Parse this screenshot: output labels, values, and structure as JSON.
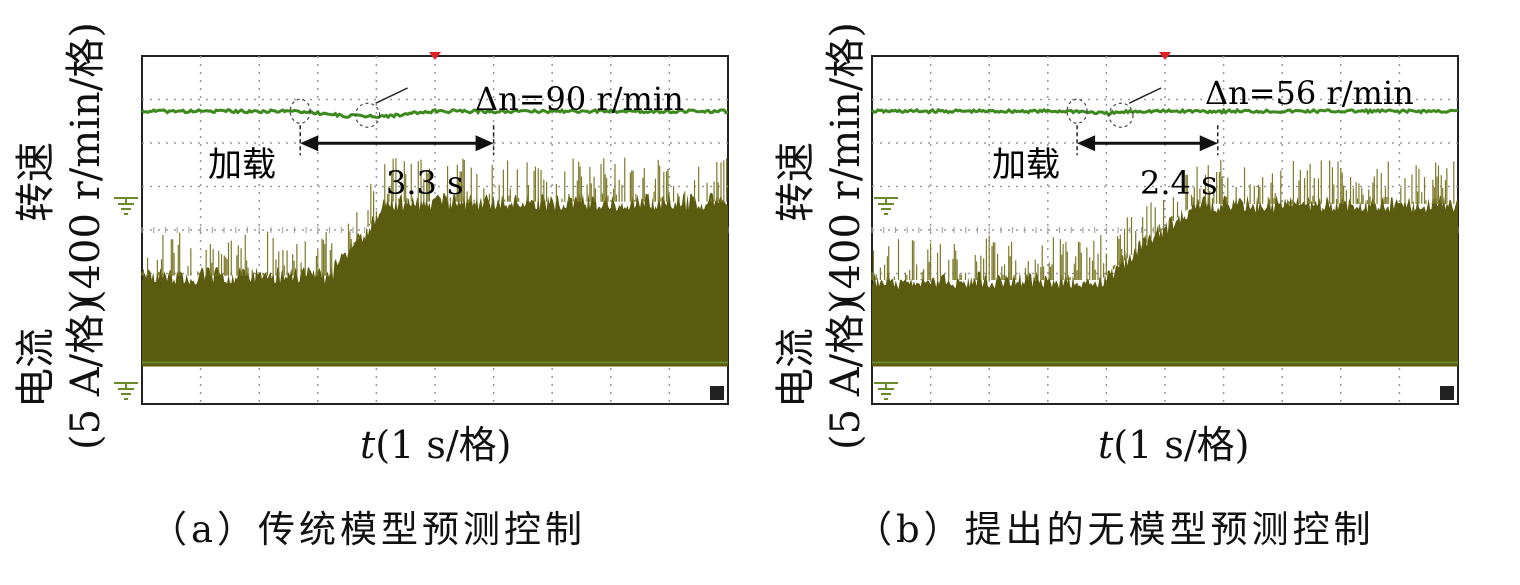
{
  "panels": [
    {
      "caption": "（a）传统模型预测控制",
      "y_speed_label": "转速",
      "y_speed_unit": "(400 r/min/格)",
      "y_current_label": "电流",
      "y_current_unit": "(5 A/格)",
      "x_label_var": "t",
      "x_label_unit": "(1 s/格)",
      "delta_n_text": "=90 r/min",
      "delta_symbol": "Δn",
      "load_text": "加载",
      "interval_text": "3.3 s"
    },
    {
      "caption": "（b）提出的无模型预测控制",
      "y_speed_label": "转速",
      "y_speed_unit": "(400 r/min/格)",
      "y_current_label": "电流",
      "y_current_unit": "(5 A/格)",
      "x_label_var": "t",
      "x_label_unit": "(1 s/格)",
      "delta_n_text": "=56 r/min",
      "delta_symbol": "Δn",
      "load_text": "加载",
      "interval_text": "2.4 s"
    }
  ],
  "chart_data": [
    {
      "type": "line",
      "x_divisions": 10,
      "y_divisions": 8,
      "grid": true,
      "series": [
        {
          "name": "转速",
          "color": "#3c8a1e",
          "x": [
            0,
            2.7,
            3.5,
            4.2,
            5.0,
            10
          ],
          "y": [
            0,
            0,
            -0.2,
            -0.2,
            0,
            0
          ]
        },
        {
          "name": "电流",
          "color": "#5b5b10",
          "x": [
            0,
            3.2,
            4.2,
            10
          ],
          "y": [
            1.95,
            1.95,
            3.65,
            3.65
          ]
        }
      ],
      "load_time": 2.7,
      "recovery_time": 6.0,
      "delta_n": 90,
      "settling_s": 3.3,
      "speed_line_color": "#3c8a1e",
      "current_fill_color": "#5b5b10"
    },
    {
      "type": "line",
      "x_divisions": 10,
      "y_divisions": 8,
      "grid": true,
      "series": [
        {
          "name": "转速",
          "color": "#3c8a1e",
          "x": [
            0,
            3.5,
            4.0,
            4.5,
            10
          ],
          "y": [
            0,
            0,
            -0.1,
            0,
            0
          ]
        },
        {
          "name": "电流",
          "color": "#5b5b10",
          "x": [
            0,
            3.9,
            5.5,
            10
          ],
          "y": [
            1.85,
            1.85,
            3.6,
            3.6
          ]
        }
      ],
      "load_time": 3.5,
      "recovery_time": 5.9,
      "delta_n": 56,
      "settling_s": 2.4,
      "speed_line_color": "#3c8a1e",
      "current_fill_color": "#5b5b10"
    }
  ]
}
